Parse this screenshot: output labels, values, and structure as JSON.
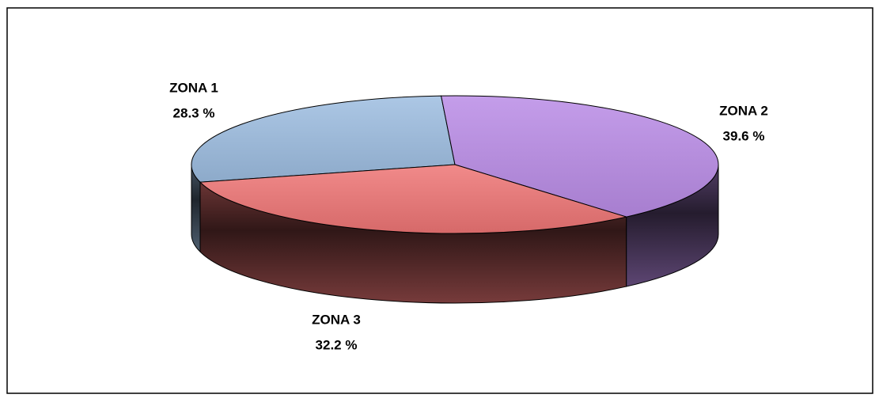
{
  "chart_data": {
    "type": "pie3d",
    "categories": [
      "ZONA 1",
      "ZONA 2",
      "ZONA 3"
    ],
    "values": [
      28.3,
      39.6,
      32.2
    ],
    "value_labels": [
      "28.3 %",
      "39.6 %",
      "32.2 %"
    ],
    "colors": [
      "#9dbde0",
      "#b98ce6",
      "#ee7575"
    ]
  }
}
